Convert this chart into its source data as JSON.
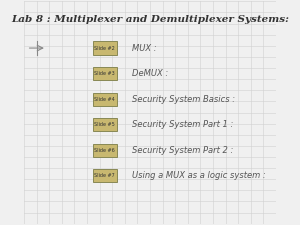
{
  "title": "Lab 8 : Multiplexer and Demultiplexer Systems:",
  "background_color": "#f0f0f0",
  "grid_color": "#d0d0d0",
  "title_color": "#333333",
  "badge_bg": "#c8b870",
  "badge_border": "#888855",
  "badge_text_color": "#333333",
  "item_text_color": "#555555",
  "items": [
    {
      "badge": "Slide #2",
      "text": "MUX :"
    },
    {
      "badge": "Slide #3",
      "text": "DeMUX :"
    },
    {
      "badge": "Slide #4",
      "text": "Security System Basics :"
    },
    {
      "badge": "Slide #5",
      "text": "Security System Part 1 :"
    },
    {
      "badge": "Slide #6",
      "text": "Security System Part 2 :"
    },
    {
      "badge": "Slide #7",
      "text": "Using a MUX as a logic system :"
    }
  ],
  "figsize": [
    3.0,
    2.25
  ],
  "dpi": 100
}
